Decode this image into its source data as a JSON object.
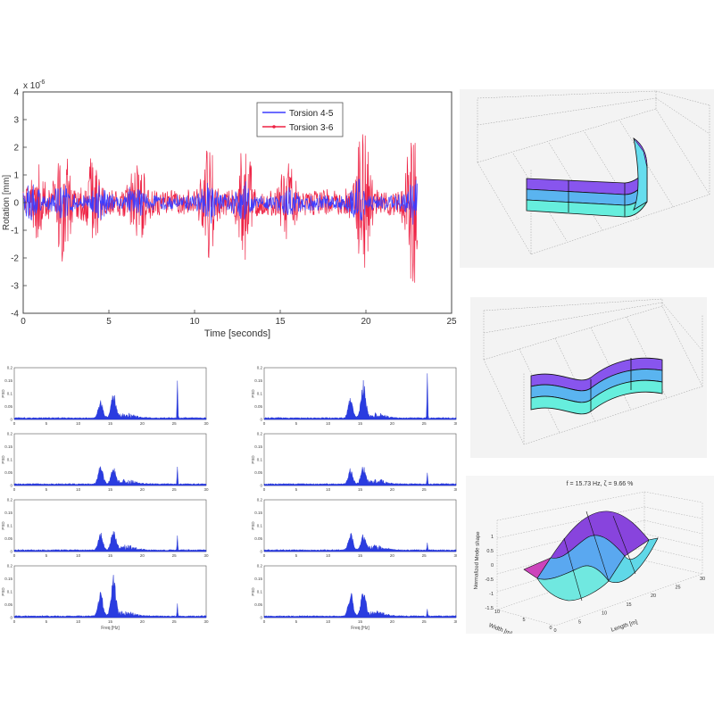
{
  "chart_data": [
    {
      "type": "line",
      "title": "",
      "xlabel": "Time [seconds]",
      "ylabel": "Rotation [mm]",
      "yexponent": "x 10",
      "yexponent_power": "-6",
      "xlim": [
        0,
        25
      ],
      "ylim": [
        -4,
        4
      ],
      "xticks": [
        "0",
        "5",
        "10",
        "15",
        "20",
        "25"
      ],
      "yticks": [
        "-4",
        "-3",
        "-2",
        "-1",
        "0",
        "1",
        "2",
        "3",
        "4"
      ],
      "grid": false,
      "legend_position": "top-right",
      "series": [
        {
          "name": "Torsion 4-5",
          "color": "#3c3cff",
          "x_end": 23.0,
          "bursts": [
            [
              0.5,
              0.5
            ],
            [
              2.3,
              0.6
            ],
            [
              4.5,
              0.4
            ],
            [
              6.5,
              0.55
            ],
            [
              10.8,
              0.6
            ],
            [
              12.8,
              0.55
            ],
            [
              15.5,
              0.4
            ],
            [
              19.5,
              0.7
            ],
            [
              22.8,
              0.6
            ]
          ],
          "base": 0.3
        },
        {
          "name": "Torsion 3-6",
          "color": "#ee2244",
          "x_end": 23.0,
          "bursts": [
            [
              0.8,
              1.1
            ],
            [
              2.3,
              2.1
            ],
            [
              4.0,
              1.3
            ],
            [
              6.7,
              1.5
            ],
            [
              10.9,
              1.9
            ],
            [
              12.9,
              2.2
            ],
            [
              15.4,
              1.4
            ],
            [
              19.8,
              2.7
            ],
            [
              22.8,
              3.2
            ]
          ],
          "base": 0.5
        }
      ]
    },
    {
      "type": "line",
      "title": "",
      "xlabel": "Freq [Hz]",
      "ylabel": "PSD",
      "xlim": [
        0,
        30
      ],
      "xticks": [
        "0",
        "5",
        "10",
        "15",
        "20",
        "25",
        "30"
      ],
      "panels": [
        {
          "ylim": [
            0,
            0.2
          ],
          "yticks": [
            "0",
            "0.05",
            "0.1",
            "0.15",
            "0.2"
          ],
          "peaks": [
            [
              13.5,
              0.07
            ],
            [
              15.5,
              0.1
            ],
            [
              25.5,
              0.2
            ]
          ]
        },
        {
          "ylim": [
            0,
            0.2
          ],
          "yticks": [
            "0",
            "0.05",
            "0.1",
            "0.15",
            "0.2"
          ],
          "peaks": [
            [
              13.5,
              0.08
            ],
            [
              15.5,
              0.06
            ],
            [
              25.5,
              0.09
            ]
          ]
        },
        {
          "ylim": [
            0,
            0.2
          ],
          "yticks": [
            "0",
            "0.05",
            "0.1",
            "0.15",
            "0.2"
          ],
          "peaks": [
            [
              13.5,
              0.07
            ],
            [
              15.5,
              0.08
            ],
            [
              25.5,
              0.07
            ]
          ]
        },
        {
          "ylim": [
            0,
            0.2
          ],
          "yticks": [
            "0",
            "0.05",
            "0.1",
            "0.15",
            "0.2"
          ],
          "peaks": [
            [
              13.5,
              0.1
            ],
            [
              15.5,
              0.17
            ],
            [
              25.5,
              0.06
            ]
          ]
        },
        {
          "ylim": [
            0,
            0.2
          ],
          "yticks": [
            "0",
            "0.05",
            "0.1",
            "0.15",
            "0.2"
          ],
          "peaks": [
            [
              13.5,
              0.08
            ],
            [
              15.5,
              0.15
            ],
            [
              25.5,
              0.2
            ]
          ]
        },
        {
          "ylim": [
            0,
            0.2
          ],
          "yticks": [
            "0",
            "0.05",
            "0.1",
            "0.15",
            "0.2"
          ],
          "peaks": [
            [
              13.5,
              0.06
            ],
            [
              15.5,
              0.07
            ],
            [
              25.5,
              0.05
            ]
          ]
        },
        {
          "ylim": [
            0,
            0.2
          ],
          "yticks": [
            "0",
            "0.05",
            "0.1",
            "0.15",
            "0.2"
          ],
          "peaks": [
            [
              13.5,
              0.07
            ],
            [
              15.5,
              0.06
            ],
            [
              25.5,
              0.03
            ]
          ]
        },
        {
          "ylim": [
            0,
            0.2
          ],
          "yticks": [
            "0",
            "0.05",
            "0.1",
            "0.15",
            "0.2"
          ],
          "peaks": [
            [
              13.5,
              0.1
            ],
            [
              15.5,
              0.11
            ],
            [
              25.5,
              0.03
            ]
          ]
        }
      ]
    },
    {
      "type": "surface",
      "mode": "torsion",
      "colors": [
        "#8855ee",
        "#5ab4f0",
        "#66eedd"
      ]
    },
    {
      "type": "surface",
      "mode": "bending",
      "colors": [
        "#8855ee",
        "#5ab4f0",
        "#66eedd"
      ]
    },
    {
      "type": "surface",
      "mode": "plate",
      "title": "f = 15.73 Hz, ζ = 9.66 %",
      "zlabel": "Normalized Mode shape",
      "xlabel": "Length [m]",
      "ylabel": "Width [m]",
      "zticks": [
        "1",
        "0.5",
        "0",
        "-0.5",
        "-1",
        "-1.5"
      ],
      "xticks": [
        "0",
        "5",
        "10",
        "15",
        "20",
        "25",
        "30"
      ],
      "yticks": [
        "0",
        "5",
        "10"
      ],
      "colors": [
        "#8844dd",
        "#5aa8f0",
        "#70e8e0"
      ]
    }
  ]
}
